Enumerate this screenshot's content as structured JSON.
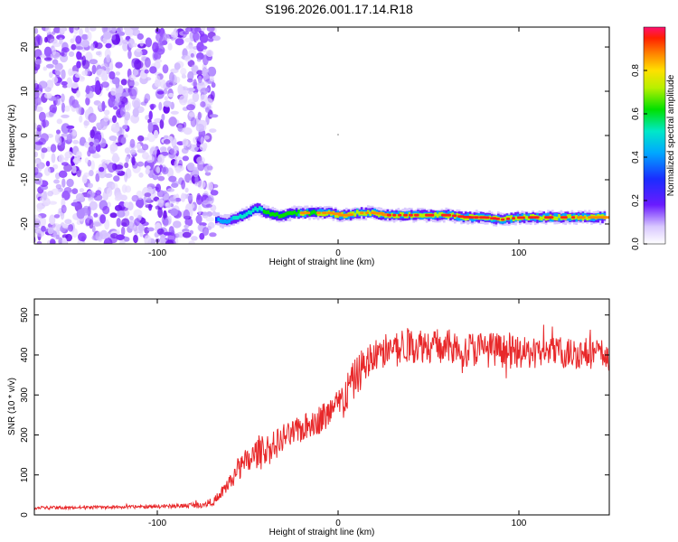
{
  "title": "S196.2026.001.17.14.R18",
  "chart_data": [
    {
      "type": "heatmap",
      "xlabel": "Height of straight line (km)",
      "ylabel": "Frequency (Hz)",
      "xlim": [
        -168,
        150
      ],
      "ylim": [
        -24.5,
        24.5
      ],
      "xticks": [
        -100,
        0,
        100
      ],
      "yticks": [
        20,
        10,
        0,
        -10,
        -20
      ],
      "colorbar": {
        "label": "Normalized spectral amplitude",
        "range": [
          0,
          1
        ],
        "ticks": [
          0.0,
          0.2,
          0.4,
          0.6,
          0.8
        ]
      },
      "noise_region_x": [
        -168,
        -68
      ],
      "signal_trace": {
        "x": [
          -68,
          -62,
          -56,
          -50,
          -45,
          -40,
          -35,
          -30,
          -25,
          -20,
          -15,
          -10,
          -5,
          0,
          5,
          10,
          15,
          20,
          25,
          30,
          40,
          50,
          60,
          70,
          80,
          90,
          100,
          110,
          120,
          130,
          140,
          148
        ],
        "freq": [
          -19,
          -19.5,
          -18.5,
          -17.5,
          -16.5,
          -17.5,
          -18,
          -18,
          -17.5,
          -17.5,
          -17.5,
          -17.5,
          -17.5,
          -18,
          -18,
          -17.5,
          -17.5,
          -17.5,
          -18,
          -18,
          -18,
          -18,
          -18,
          -18.5,
          -18.5,
          -19,
          -18.5,
          -18.5,
          -18.5,
          -18.5,
          -18.5,
          -18.5
        ],
        "amplitude": [
          0.35,
          0.5,
          0.55,
          0.6,
          0.65,
          0.7,
          0.75,
          0.8,
          0.8,
          0.85,
          0.8,
          0.85,
          0.85,
          0.85,
          0.9,
          0.9,
          0.9,
          0.9,
          0.9,
          0.95,
          0.95,
          0.95,
          0.95,
          0.95,
          0.95,
          0.95,
          0.95,
          0.95,
          0.95,
          0.9,
          0.9,
          0.85
        ]
      }
    },
    {
      "type": "line",
      "xlabel": "Height of straight line (km)",
      "ylabel": "SNR (10 * v/v)",
      "xlim": [
        -168,
        150
      ],
      "ylim": [
        0,
        540
      ],
      "xticks": [
        -100,
        0,
        100
      ],
      "yticks": [
        0,
        100,
        200,
        300,
        400,
        500
      ],
      "color": "#e8282a",
      "series": [
        {
          "x": [
            -168,
            -150,
            -130,
            -110,
            -90,
            -75,
            -68,
            -62,
            -56,
            -50,
            -44,
            -38,
            -30,
            -22,
            -14,
            -6,
            0,
            4,
            8,
            12,
            16,
            20,
            25,
            30,
            40,
            50,
            60,
            70,
            80,
            90,
            100,
            110,
            120,
            130,
            140,
            150
          ],
          "values": [
            18,
            18,
            19,
            20,
            22,
            26,
            35,
            70,
            110,
            130,
            160,
            165,
            190,
            210,
            230,
            250,
            270,
            300,
            330,
            360,
            380,
            395,
            410,
            420,
            425,
            425,
            420,
            415,
            415,
            410,
            405,
            405,
            405,
            405,
            405,
            400
          ],
          "noise_amplitude": [
            4,
            4,
            4,
            4,
            5,
            8,
            10,
            20,
            30,
            35,
            40,
            40,
            35,
            35,
            35,
            40,
            45,
            50,
            50,
            50,
            50,
            45,
            45,
            45,
            45,
            45,
            45,
            45,
            45,
            45,
            40,
            40,
            40,
            40,
            40,
            40
          ]
        }
      ]
    }
  ]
}
